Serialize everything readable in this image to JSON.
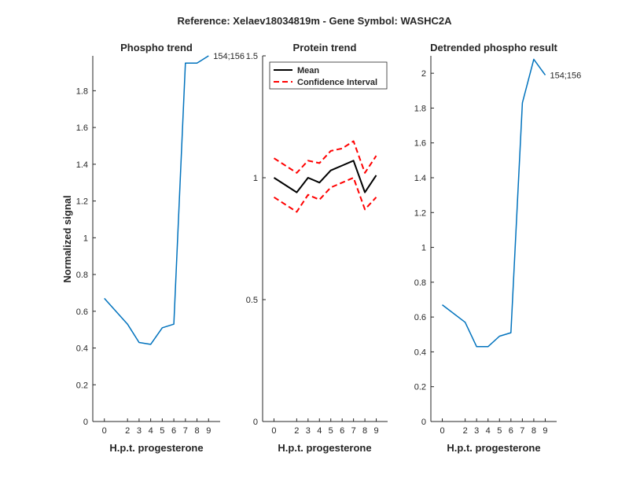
{
  "suptitle": "Reference:  Xelaev18034819m - Gene Symbol:  WASHC2A",
  "colors": {
    "series": "#0072BD",
    "mean": "#000000",
    "ci": "#FF0000",
    "axis": "#262626"
  },
  "chart_data": [
    {
      "type": "line",
      "title": "Phospho trend",
      "xlabel": "H.p.t. progesterone",
      "ylabel": "Normalized signal",
      "x": [
        0,
        2,
        3,
        4,
        5,
        6,
        7,
        8,
        9
      ],
      "xticks": [
        "0",
        "2",
        "3",
        "4",
        "5",
        "6",
        "7",
        "8",
        "9"
      ],
      "yticks": [
        "0",
        "0.2",
        "0.4",
        "0.6",
        "0.8",
        "1",
        "1.2",
        "1.4",
        "1.6",
        "1.8"
      ],
      "ylim": [
        0,
        1.99
      ],
      "series": [
        {
          "values": [
            0.67,
            0.53,
            0.43,
            0.42,
            0.51,
            0.53,
            1.95,
            1.95,
            1.99
          ]
        }
      ],
      "annotation": "154;156"
    },
    {
      "type": "line",
      "title": "Protein trend",
      "xlabel": "H.p.t. progesterone",
      "x": [
        0,
        2,
        3,
        4,
        5,
        6,
        7,
        8,
        9
      ],
      "xticks": [
        "0",
        "2",
        "3",
        "4",
        "5",
        "6",
        "7",
        "8",
        "9"
      ],
      "yticks": [
        "0",
        "0.5",
        "1",
        "1.5"
      ],
      "ylim": [
        0,
        1.5
      ],
      "legend": {
        "location": "top-left",
        "entries": [
          "Mean",
          "Confidence Interval"
        ]
      },
      "series": [
        {
          "name": "Mean",
          "values": [
            1.0,
            0.94,
            1.0,
            0.98,
            1.03,
            1.05,
            1.07,
            0.94,
            1.01
          ]
        },
        {
          "name": "Confidence Interval",
          "values": [
            1.08,
            1.02,
            1.07,
            1.06,
            1.11,
            1.12,
            1.15,
            1.02,
            1.09
          ]
        },
        {
          "name": "Confidence Interval",
          "values": [
            0.92,
            0.86,
            0.93,
            0.91,
            0.96,
            0.98,
            1.0,
            0.87,
            0.92
          ]
        }
      ]
    },
    {
      "type": "line",
      "title": "Detrended phospho result",
      "xlabel": "H.p.t. progesterone",
      "x": [
        0,
        2,
        3,
        4,
        5,
        6,
        7,
        8,
        9
      ],
      "xticks": [
        "0",
        "2",
        "3",
        "4",
        "5",
        "6",
        "7",
        "8",
        "9"
      ],
      "yticks": [
        "0",
        "0.2",
        "0.4",
        "0.6",
        "0.8",
        "1",
        "1.2",
        "1.4",
        "1.6",
        "1.8",
        "2"
      ],
      "ylim": [
        0,
        2.1
      ],
      "series": [
        {
          "values": [
            0.67,
            0.57,
            0.43,
            0.43,
            0.49,
            0.51,
            1.83,
            2.08,
            1.99
          ]
        }
      ],
      "annotation": "154;156"
    }
  ]
}
